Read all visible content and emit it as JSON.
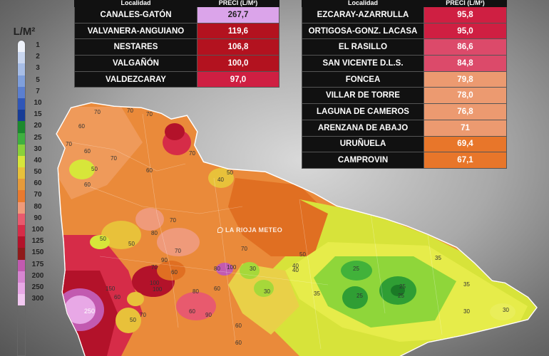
{
  "legend": {
    "title": "L/M²",
    "items": [
      {
        "label": "1",
        "color": "#eef2fa"
      },
      {
        "label": "2",
        "color": "#c9d6ef"
      },
      {
        "label": "3",
        "color": "#a7bde6"
      },
      {
        "label": "5",
        "color": "#7f9fdc"
      },
      {
        "label": "7",
        "color": "#5b7fd0"
      },
      {
        "label": "10",
        "color": "#2f56b8"
      },
      {
        "label": "15",
        "color": "#173c96"
      },
      {
        "label": "20",
        "color": "#1c8a2e"
      },
      {
        "label": "25",
        "color": "#3fb03f"
      },
      {
        "label": "30",
        "color": "#8ad13a"
      },
      {
        "label": "40",
        "color": "#d7e63a"
      },
      {
        "label": "50",
        "color": "#e8c13a"
      },
      {
        "label": "60",
        "color": "#e69a3a"
      },
      {
        "label": "70",
        "color": "#ea7a2e"
      },
      {
        "label": "80",
        "color": "#ef9a7a"
      },
      {
        "label": "90",
        "color": "#e85a6e"
      },
      {
        "label": "100",
        "color": "#d62c48"
      },
      {
        "label": "125",
        "color": "#b3122a"
      },
      {
        "label": "150",
        "color": "#8f1a1a"
      },
      {
        "label": "175",
        "color": "#c25ab0"
      },
      {
        "label": "200",
        "color": "#d786d1"
      },
      {
        "label": "250",
        "color": "#e8a8e6"
      },
      {
        "label": "300",
        "color": "#f2c8f1"
      }
    ]
  },
  "tables": {
    "left": {
      "header_loc": "Localidad",
      "header_val": "PRECI (L/M²)",
      "rows": [
        {
          "loc": "CANALES-GATÓN",
          "val": "267,7",
          "color": "#dba4ea",
          "text": "#222"
        },
        {
          "loc": "VALVANERA-ANGUIANO",
          "val": "119,6",
          "color": "#b3121f",
          "text": "#fff"
        },
        {
          "loc": "NESTARES",
          "val": "106,8",
          "color": "#b3121f",
          "text": "#fff"
        },
        {
          "loc": "VALGAÑÓN",
          "val": "100,0",
          "color": "#b3121f",
          "text": "#fff"
        },
        {
          "loc": "VALDEZCARAY",
          "val": "97,0",
          "color": "#cf1f42",
          "text": "#fff"
        }
      ]
    },
    "right": {
      "header_loc": "Localidad",
      "header_val": "PRECI (L/M²)",
      "rows": [
        {
          "loc": "EZCARAY-AZARRULLA",
          "val": "95,8",
          "color": "#cf1f42",
          "text": "#fff"
        },
        {
          "loc": "ORTIGOSA-GONZ. LACASA",
          "val": "95,0",
          "color": "#cf1f42",
          "text": "#fff"
        },
        {
          "loc": "EL RASILLO",
          "val": "86,6",
          "color": "#dc4a6a",
          "text": "#fff"
        },
        {
          "loc": "SAN VICENTE D.L.S.",
          "val": "84,8",
          "color": "#dc4a6a",
          "text": "#fff"
        },
        {
          "loc": "FONCEA",
          "val": "79,8",
          "color": "#ec9a70",
          "text": "#fff"
        },
        {
          "loc": "VILLAR DE TORRE",
          "val": "78,0",
          "color": "#ec9a70",
          "text": "#fff"
        },
        {
          "loc": "LAGUNA DE CAMEROS",
          "val": "76,8",
          "color": "#ec9a70",
          "text": "#fff"
        },
        {
          "loc": "ARENZANA DE ABAJO",
          "val": "71",
          "color": "#ec9a70",
          "text": "#fff"
        },
        {
          "loc": "URUÑUELA",
          "val": "69,4",
          "color": "#e8762a",
          "text": "#fff"
        },
        {
          "loc": "CAMPROVIN",
          "val": "67,1",
          "color": "#e8762a",
          "text": "#fff"
        }
      ]
    }
  },
  "watermark": "LA RIOJA METEO",
  "contour_labels": [
    "70",
    "70",
    "70",
    "60",
    "60",
    "70",
    "50",
    "70",
    "60",
    "40",
    "50",
    "70",
    "50",
    "50",
    "80",
    "70",
    "60",
    "70",
    "60",
    "60",
    "100",
    "70",
    "90",
    "80",
    "50",
    "60",
    "60",
    "60",
    "100",
    "80",
    "70",
    "50",
    "40",
    "30",
    "25",
    "25",
    "30",
    "30",
    "25",
    "25",
    "35",
    "35",
    "35",
    "30",
    "250",
    "150",
    "90",
    "100",
    "60",
    "70",
    "40"
  ]
}
